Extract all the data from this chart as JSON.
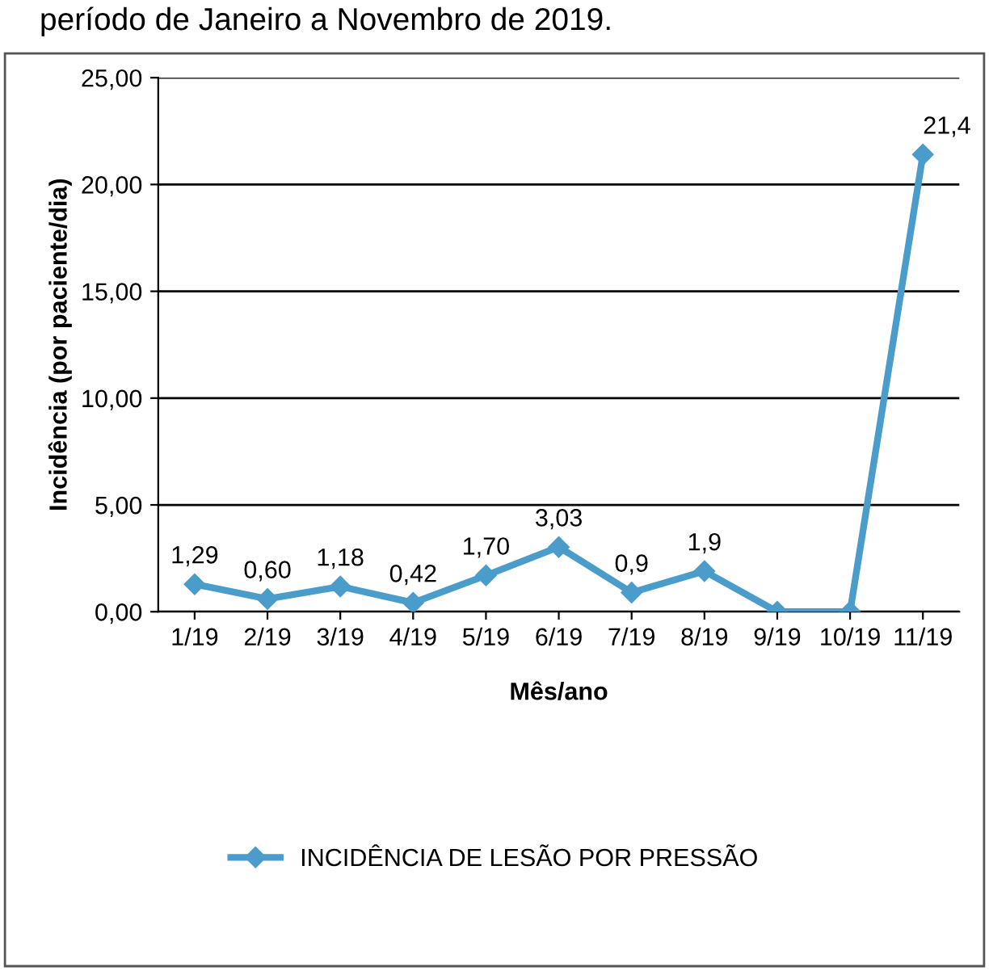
{
  "chart_data": {
    "type": "line",
    "title": "período de Janeiro a Novembro de 2019.",
    "xlabel": "Mês/ano",
    "ylabel": "Incidência (por paciente/dia)",
    "categories": [
      "1/19",
      "2/19",
      "3/19",
      "4/19",
      "5/19",
      "6/19",
      "7/19",
      "8/19",
      "9/19",
      "10/19",
      "11/19"
    ],
    "series": [
      {
        "name": "INCIDÊNCIA DE LESÃO POR PRESSÃO",
        "color": "#4a9ccb",
        "values": [
          1.29,
          0.6,
          1.18,
          0.42,
          1.7,
          3.03,
          0.9,
          1.9,
          0,
          0,
          21.4
        ],
        "value_labels": [
          "1,29",
          "0,60",
          "1,18",
          "0,42",
          "1,70",
          "3,03",
          "0,9",
          "1,9",
          null,
          null,
          "21,4"
        ]
      }
    ],
    "ylim": [
      0,
      25
    ],
    "yticks": [
      {
        "value": 0,
        "label": "0,00"
      },
      {
        "value": 5,
        "label": "5,00"
      },
      {
        "value": 10,
        "label": "10,00"
      },
      {
        "value": 15,
        "label": "15,00"
      },
      {
        "value": 20,
        "label": "20,00"
      },
      {
        "value": 25,
        "label": "25,00"
      }
    ],
    "grid": "y",
    "legend": "bottom",
    "marker": "diamond",
    "line_style": "solid"
  }
}
